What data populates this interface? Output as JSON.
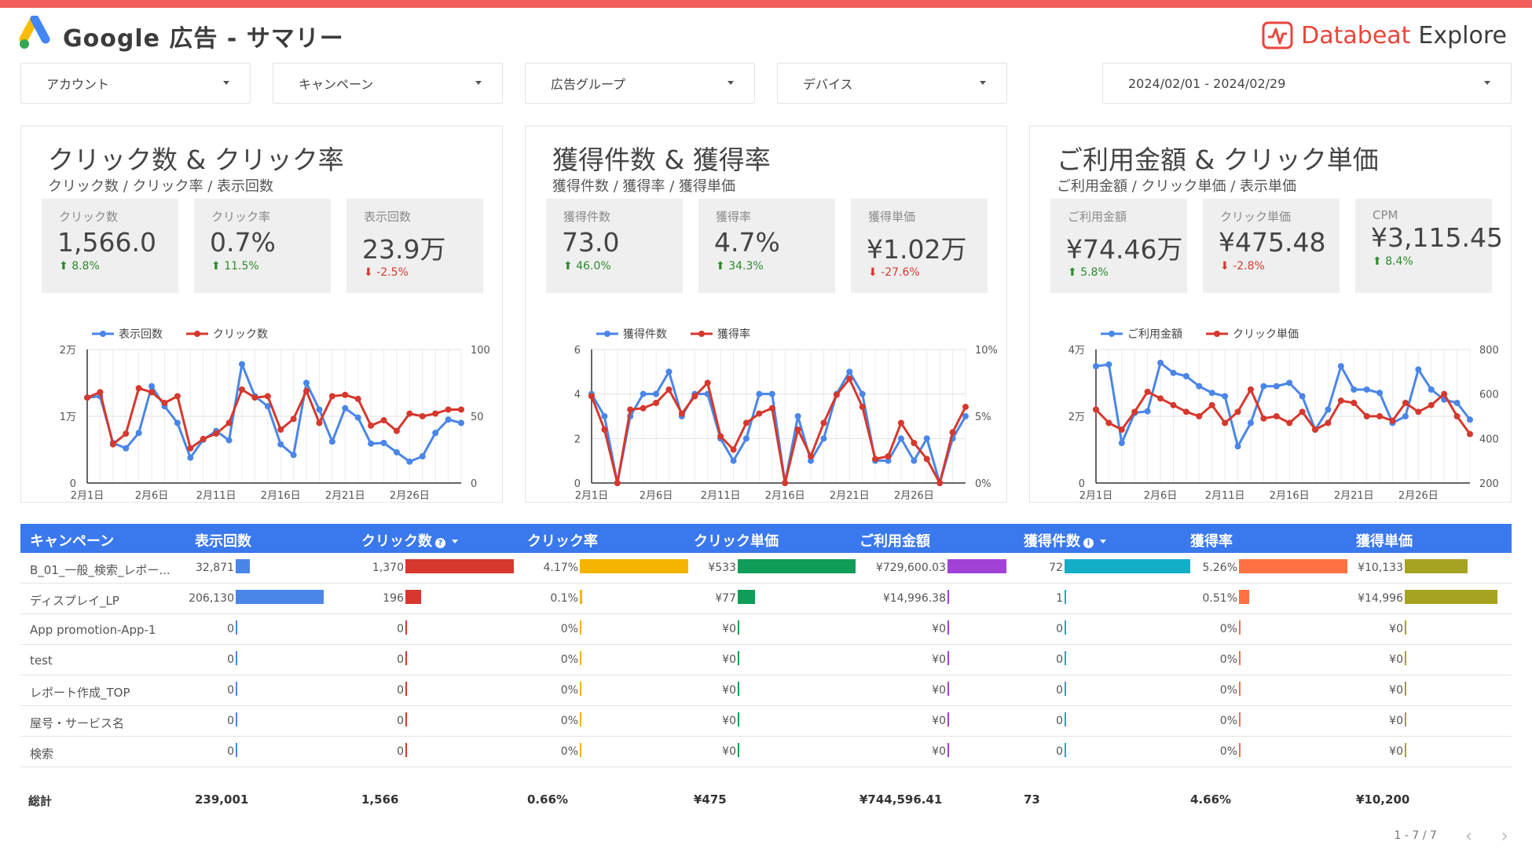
{
  "header": {
    "title": "Google 広告 - サマリー",
    "brand_part1": "Databeat",
    "brand_part2": "Explore"
  },
  "filters": {
    "account": "アカウント",
    "campaign": "キャンペーン",
    "ad_group": "広告グループ",
    "device": "デバイス",
    "date_range": "2024/02/01 - 2024/02/29"
  },
  "panels": [
    {
      "title": "クリック数 & クリック率",
      "subtitle": "クリック数 / クリック率 / 表示回数",
      "kpis": [
        {
          "label": "クリック数",
          "value": "1,566.0",
          "delta": "8.8%",
          "dir": "up"
        },
        {
          "label": "クリック率",
          "value": "0.7%",
          "delta": "11.5%",
          "dir": "up"
        },
        {
          "label": "表示回数",
          "value": "23.9万",
          "delta": "-2.5%",
          "dir": "down"
        }
      ]
    },
    {
      "title": "獲得件数 & 獲得率",
      "subtitle": "獲得件数 / 獲得率 / 獲得単価",
      "kpis": [
        {
          "label": "獲得件数",
          "value": "73.0",
          "delta": "46.0%",
          "dir": "up"
        },
        {
          "label": "獲得率",
          "value": "4.7%",
          "delta": "34.3%",
          "dir": "up"
        },
        {
          "label": "獲得単価",
          "value": "¥1.02万",
          "delta": "-27.6%",
          "dir": "down"
        }
      ]
    },
    {
      "title": "ご利用金額 & クリック単価",
      "subtitle": "ご利用金額 / クリック単価 / 表示単価",
      "kpis": [
        {
          "label": "ご利用金額",
          "value": "¥74.46万",
          "delta": "5.8%",
          "dir": "up"
        },
        {
          "label": "クリック単価",
          "value": "¥475.48",
          "delta": "-2.8%",
          "dir": "down"
        },
        {
          "label": "CPM",
          "value": "¥3,115.45",
          "delta": "8.4%",
          "dir": "up"
        }
      ]
    }
  ],
  "chart_data": [
    {
      "type": "line",
      "x_ticks": [
        "2月1日",
        "2月6日",
        "2月11日",
        "2月16日",
        "2月21日",
        "2月26日"
      ],
      "left_ticks": [
        "2万",
        "1万",
        "0"
      ],
      "right_ticks": [
        "100",
        "50",
        "0"
      ],
      "left_range": [
        0,
        20000
      ],
      "right_range": [
        0,
        100
      ],
      "colors": {
        "left": "#4a86e8",
        "right": "#d6382d"
      },
      "series": [
        {
          "name": "表示回数",
          "axis": "left",
          "values": [
            12800,
            13000,
            6000,
            5200,
            7500,
            14500,
            11500,
            9000,
            3800,
            6500,
            7800,
            6400,
            17800,
            13000,
            11500,
            5800,
            4200,
            15000,
            11000,
            6200,
            11200,
            9800,
            5900,
            6000,
            4600,
            3200,
            4000,
            7500,
            9500,
            9000
          ]
        },
        {
          "name": "クリック数",
          "axis": "right",
          "values": [
            64,
            68,
            29,
            37,
            71,
            68,
            60,
            65,
            26,
            33,
            37,
            45,
            70,
            64,
            65,
            40,
            48,
            69,
            45,
            65,
            66,
            63,
            43,
            47,
            39,
            52,
            50,
            52,
            55,
            55
          ]
        }
      ]
    },
    {
      "type": "line",
      "x_ticks": [
        "2月1日",
        "2月6日",
        "2月11日",
        "2月16日",
        "2月21日",
        "2月26日"
      ],
      "left_ticks": [
        "6",
        "4",
        "2",
        "0"
      ],
      "right_ticks": [
        "10%",
        "5%",
        "0%"
      ],
      "left_range": [
        0,
        6
      ],
      "right_range": [
        0,
        10
      ],
      "colors": {
        "left": "#4a86e8",
        "right": "#d6382d"
      },
      "series": [
        {
          "name": "獲得件数",
          "axis": "left",
          "values": [
            4,
            3,
            0,
            3,
            4,
            4,
            5,
            3,
            4,
            4,
            2,
            1,
            2,
            4,
            4,
            0,
            3,
            1,
            2,
            4,
            5,
            4,
            1,
            1,
            2,
            1,
            2,
            0,
            2,
            3
          ]
        },
        {
          "name": "獲得率",
          "axis": "right",
          "values": [
            6.5,
            4,
            0,
            5.5,
            5.6,
            6,
            7,
            5.2,
            6.5,
            7.5,
            3.5,
            2.5,
            4.5,
            5.2,
            5.6,
            0,
            4,
            2,
            4.5,
            6.6,
            7.8,
            5.7,
            1.8,
            2,
            4.5,
            3,
            1.8,
            0,
            3.8,
            5.7
          ]
        }
      ]
    },
    {
      "type": "line",
      "x_ticks": [
        "2月1日",
        "2月6日",
        "2月11日",
        "2月16日",
        "2月21日",
        "2月26日"
      ],
      "left_ticks": [
        "4万",
        "2万",
        "0"
      ],
      "right_ticks": [
        "800",
        "600",
        "400",
        "200"
      ],
      "left_range": [
        0,
        40000
      ],
      "right_range": [
        200,
        800
      ],
      "colors": {
        "left": "#4a86e8",
        "right": "#d6382d"
      },
      "series": [
        {
          "name": "ご利用金額",
          "axis": "left",
          "values": [
            35000,
            35500,
            12000,
            21000,
            21500,
            36000,
            33000,
            32000,
            29000,
            27000,
            26000,
            11000,
            18000,
            29000,
            29000,
            30000,
            26000,
            16000,
            22000,
            35000,
            28000,
            28000,
            27000,
            18000,
            20000,
            34000,
            28000,
            25000,
            24000,
            19000
          ]
        },
        {
          "name": "クリック単価",
          "axis": "right",
          "values": [
            530,
            470,
            440,
            520,
            610,
            580,
            550,
            520,
            500,
            550,
            470,
            520,
            620,
            490,
            500,
            470,
            520,
            440,
            470,
            570,
            560,
            500,
            500,
            480,
            560,
            520,
            550,
            600,
            500,
            420
          ]
        }
      ]
    }
  ],
  "table": {
    "headers": {
      "campaign": "キャンペーン",
      "impressions": "表示回数",
      "clicks": "クリック数",
      "ctr": "クリック率",
      "cpc": "クリック単価",
      "cost": "ご利用金額",
      "conversions": "獲得件数",
      "cvr": "獲得率",
      "cpa": "獲得単価"
    },
    "rows": [
      {
        "campaign": "B_01_一般_検索_レポー...",
        "impressions": "32,871",
        "clicks": "1,370",
        "ctr": "4.17%",
        "cpc": "¥533",
        "cost": "¥729,600.03",
        "conversions": "72",
        "cvr": "5.26%",
        "cpa": "¥10,133"
      },
      {
        "campaign": "ディスプレイ_LP",
        "impressions": "206,130",
        "clicks": "196",
        "ctr": "0.1%",
        "cpc": "¥77",
        "cost": "¥14,996.38",
        "conversions": "1",
        "cvr": "0.51%",
        "cpa": "¥14,996"
      },
      {
        "campaign": "App promotion-App-1",
        "impressions": "0",
        "clicks": "0",
        "ctr": "0%",
        "cpc": "¥0",
        "cost": "¥0",
        "conversions": "0",
        "cvr": "0%",
        "cpa": "¥0"
      },
      {
        "campaign": "test",
        "impressions": "0",
        "clicks": "0",
        "ctr": "0%",
        "cpc": "¥0",
        "cost": "¥0",
        "conversions": "0",
        "cvr": "0%",
        "cpa": "¥0"
      },
      {
        "campaign": "レポート作成_TOP",
        "impressions": "0",
        "clicks": "0",
        "ctr": "0%",
        "cpc": "¥0",
        "cost": "¥0",
        "conversions": "0",
        "cvr": "0%",
        "cpa": "¥0"
      },
      {
        "campaign": "屋号・サービス名",
        "impressions": "0",
        "clicks": "0",
        "ctr": "0%",
        "cpc": "¥0",
        "cost": "¥0",
        "conversions": "0",
        "cvr": "0%",
        "cpa": "¥0"
      },
      {
        "campaign": "検索",
        "impressions": "0",
        "clicks": "0",
        "ctr": "0%",
        "cpc": "¥0",
        "cost": "¥0",
        "conversions": "0",
        "cvr": "0%",
        "cpa": "¥0"
      }
    ],
    "bar_fractions": [
      {
        "impressions": 0.16,
        "clicks": 1.0,
        "ctr": 1.0,
        "cpc": 1.0,
        "cost": 1.0,
        "conversions": 1.0,
        "cvr": 1.0,
        "cpa": 0.68
      },
      {
        "impressions": 1.0,
        "clicks": 0.143,
        "ctr": 0.024,
        "cpc": 0.144,
        "cost": 0.02,
        "conversions": 0.014,
        "cvr": 0.097,
        "cpa": 1.0
      }
    ],
    "bar_colors": {
      "impressions": "#4a86e8",
      "clicks": "#d6382d",
      "ctr": "#f4b400",
      "cpc": "#0f9d58",
      "cost": "#a142d6",
      "conversions": "#13aec6",
      "cvr": "#ff7043",
      "cpa": "#a7a322"
    },
    "totals": {
      "label": "総計",
      "impressions": "239,001",
      "clicks": "1,566",
      "ctr": "0.66%",
      "cpc": "¥475",
      "cost": "¥744,596.41",
      "conversions": "73",
      "cvr": "4.66%",
      "cpa": "¥10,200"
    },
    "pagination": "1 - 7 / 7"
  }
}
